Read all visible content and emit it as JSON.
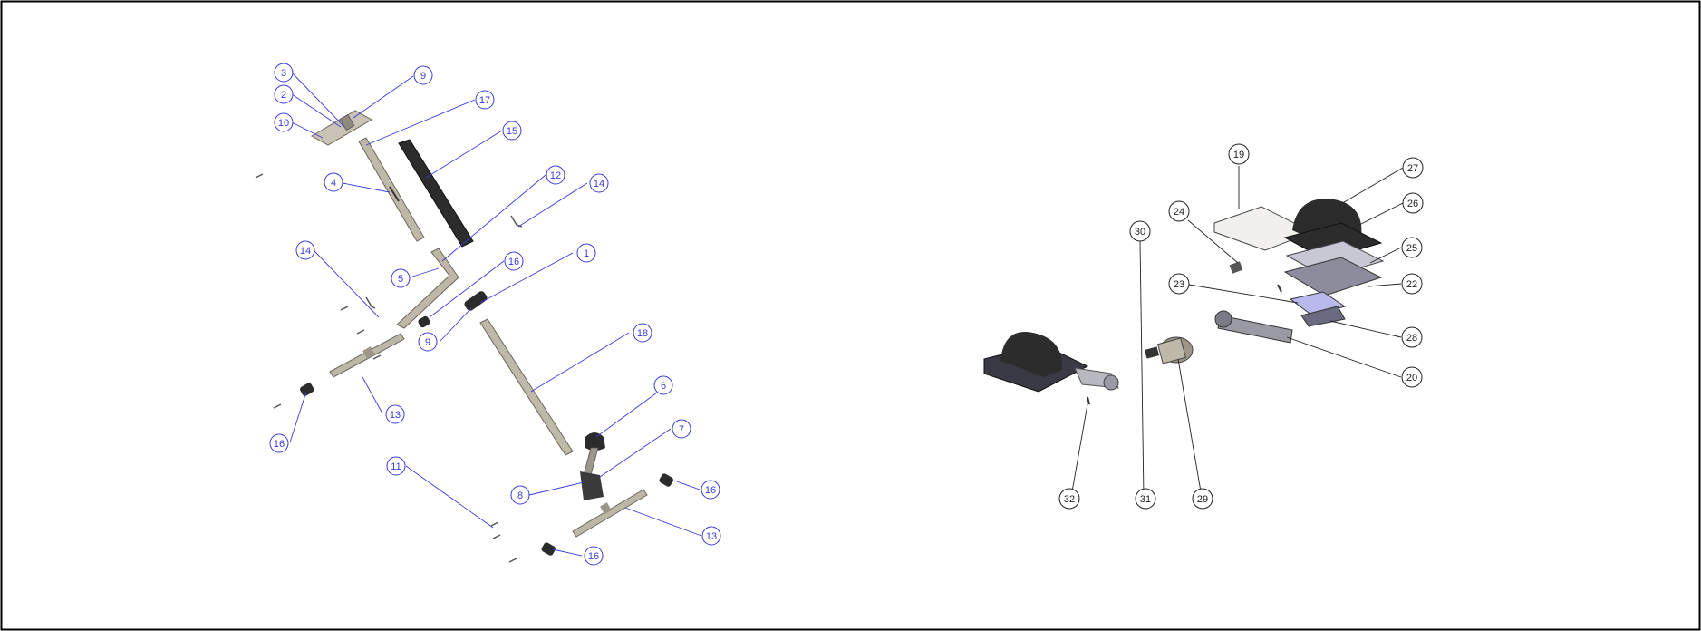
{
  "colors": {
    "left_callout": "#3a3ad8",
    "right_callout": "#222222",
    "part_light": "#b9b4a6",
    "part_dark": "#2c2c2c",
    "border": "#000000"
  },
  "left_assembly": {
    "callouts": [
      "3",
      "2",
      "10",
      "9",
      "17",
      "15",
      "4",
      "12",
      "14",
      "14",
      "5",
      "16",
      "1",
      "9",
      "18",
      "13",
      "16",
      "6",
      "7",
      "11",
      "8",
      "16",
      "13",
      "16"
    ]
  },
  "right_assembly": {
    "callouts": [
      "19",
      "27",
      "26",
      "24",
      "30",
      "25",
      "23",
      "22",
      "28",
      "20",
      "32",
      "31",
      "29"
    ]
  }
}
